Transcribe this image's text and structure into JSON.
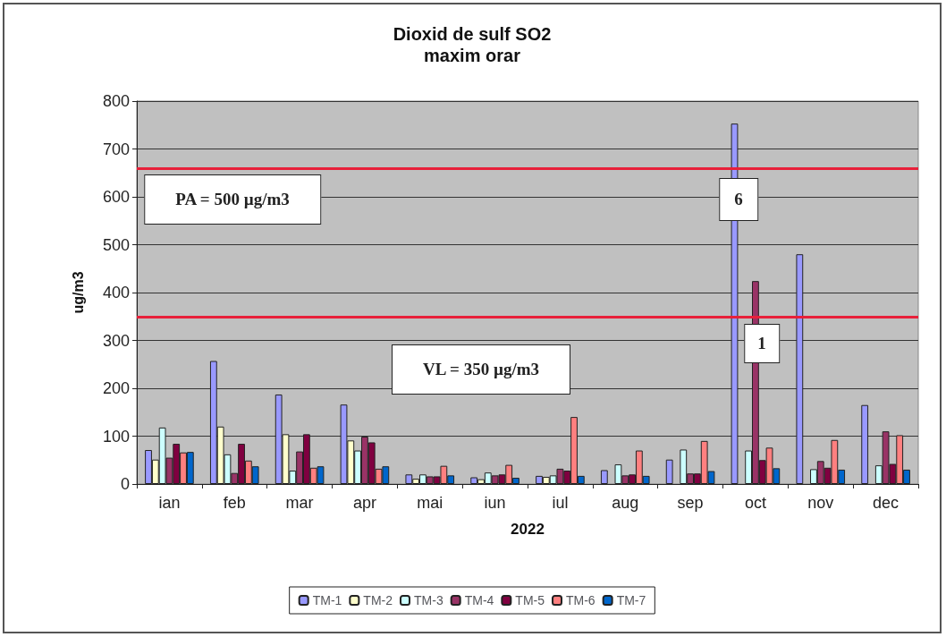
{
  "chart_data": {
    "type": "bar",
    "title": "Dioxid de sulf SO2",
    "subtitle": "maxim orar",
    "xlabel": "2022",
    "ylabel": "ug/m3",
    "categories": [
      "ian",
      "feb",
      "mar",
      "apr",
      "mai",
      "iun",
      "iul",
      "aug",
      "sep",
      "oct",
      "nov",
      "dec"
    ],
    "series": [
      {
        "name": "TM-1",
        "color": "#9999ff",
        "values": [
          71,
          257,
          187,
          166,
          20,
          14,
          17,
          29,
          51,
          753,
          480,
          165
        ]
      },
      {
        "name": "TM-2",
        "color": "#ffffcc",
        "values": [
          51,
          120,
          104,
          91,
          11,
          10,
          15,
          null,
          null,
          null,
          null,
          null
        ]
      },
      {
        "name": "TM-3",
        "color": "#ccffff",
        "values": [
          118,
          62,
          28,
          70,
          20,
          24,
          18,
          41,
          72,
          70,
          31,
          39
        ]
      },
      {
        "name": "TM-4",
        "color": "#993366",
        "values": [
          55,
          23,
          68,
          99,
          16,
          18,
          32,
          18,
          22,
          424,
          48,
          110
        ]
      },
      {
        "name": "TM-5",
        "color": "#800040",
        "values": [
          84,
          84,
          104,
          87,
          16,
          20,
          28,
          20,
          22,
          50,
          34,
          42
        ]
      },
      {
        "name": "TM-6",
        "color": "#ff8080",
        "values": [
          66,
          49,
          34,
          32,
          38,
          40,
          140,
          70,
          90,
          76,
          92,
          102
        ]
      },
      {
        "name": "TM-7",
        "color": "#0066cc",
        "values": [
          67,
          37,
          37,
          37,
          18,
          13,
          17,
          17,
          27,
          33,
          30,
          30
        ]
      }
    ],
    "ylim": [
      0,
      800
    ],
    "yticks": [
      0,
      100,
      200,
      300,
      400,
      500,
      600,
      700,
      800
    ],
    "grid": "y",
    "legend": "bottom",
    "ref_lines": [
      {
        "axis": "y",
        "value": 660,
        "color": "#e8203a"
      },
      {
        "axis": "y",
        "value": 350,
        "color": "#e8203a"
      }
    ],
    "annotations": [
      "PA = 500 µg/m3",
      "VL = 350 µg/m3",
      "6",
      "1"
    ]
  }
}
